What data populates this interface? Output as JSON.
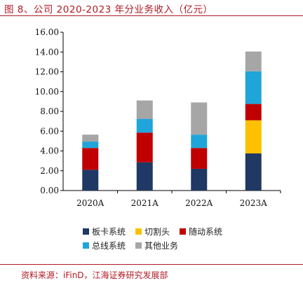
{
  "figure_title": "图 8、公司 2020-2023 年分业务收入（亿元）",
  "source_note": "资料来源：iFinD，江海证券研究发展部",
  "chart_data": {
    "type": "bar",
    "stacked": true,
    "categories": [
      "2020A",
      "2021A",
      "2022A",
      "2023A"
    ],
    "ylim": [
      0,
      16
    ],
    "yticks": [
      "0.00",
      "2.00",
      "4.00",
      "6.00",
      "8.00",
      "10.00",
      "12.00",
      "14.00",
      "16.00"
    ],
    "series": [
      {
        "name": "板卡系统",
        "color": "#1f3864",
        "values": [
          2.1,
          2.85,
          2.2,
          3.75
        ]
      },
      {
        "name": "切割头",
        "color": "#ffc000",
        "values": [
          0,
          0,
          0,
          3.35
        ]
      },
      {
        "name": "随动系统",
        "color": "#c00000",
        "values": [
          2.2,
          3.0,
          2.1,
          1.65
        ]
      },
      {
        "name": "总线系统",
        "color": "#1fa5d9",
        "values": [
          0.65,
          1.4,
          1.35,
          3.3
        ]
      },
      {
        "name": "其他业务",
        "color": "#a6a6a6",
        "values": [
          0.7,
          1.85,
          3.25,
          2.0
        ]
      }
    ],
    "grid": false,
    "legend_position": "bottom"
  }
}
